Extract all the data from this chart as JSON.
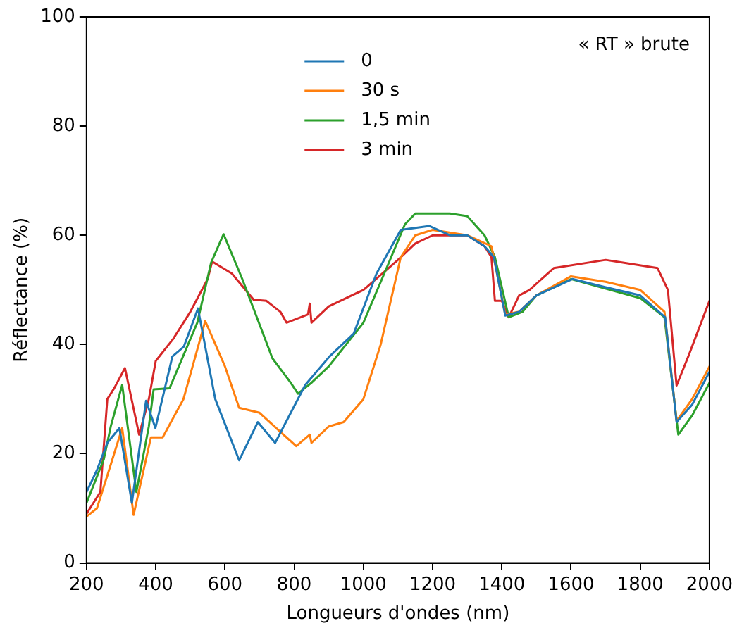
{
  "chart_data": {
    "type": "line",
    "xlabel": "Longueurs d'ondes (nm)",
    "ylabel": "Réflectance (%)",
    "xlim": [
      200,
      2000
    ],
    "xticks": [
      200,
      400,
      600,
      800,
      1000,
      1200,
      1400,
      1600,
      1800,
      2000
    ],
    "ylim": [
      0,
      100
    ],
    "yticks": [
      0,
      20,
      40,
      60,
      80,
      100
    ],
    "grid": false,
    "legend": "top",
    "marker": "none",
    "line_style": "solid",
    "annotations": [
      "« RT » brute"
    ],
    "series": [
      {
        "name": "0",
        "color": "#1f77b4",
        "x": [
          200,
          230,
          260,
          295,
          331,
          372,
          399,
          448,
          481,
          522,
          572,
          641,
          695,
          745,
          832,
          902,
          972,
          1038,
          1108,
          1191,
          1250,
          1300,
          1350,
          1377,
          1410,
          1450,
          1500,
          1604,
          1700,
          1800,
          1872,
          1905,
          1950,
          2000
        ],
        "values": [
          13,
          17,
          22,
          24.7,
          11,
          29.7,
          24.7,
          37.8,
          39.6,
          46.6,
          30,
          18.8,
          25.8,
          22,
          32.6,
          37.8,
          42,
          53,
          61,
          61.7,
          60,
          60,
          58,
          56,
          45.3,
          46,
          49,
          52,
          50.5,
          49,
          45,
          25.8,
          29,
          35
        ]
      },
      {
        "name": "30 s",
        "color": "#ff7f0e",
        "x": [
          200,
          230,
          260,
          303,
          336,
          386,
          420,
          480,
          543,
          600,
          641,
          700,
          760,
          806,
          845,
          850,
          900,
          943,
          1000,
          1050,
          1108,
          1150,
          1200,
          1300,
          1370,
          1410,
          1450,
          1500,
          1600,
          1700,
          1800,
          1870,
          1905,
          1950,
          2000
        ],
        "values": [
          8.5,
          10,
          16,
          24.7,
          8.8,
          23,
          23,
          30,
          44.3,
          36,
          28.4,
          27.5,
          24,
          21.4,
          23.5,
          22,
          25,
          25.8,
          30,
          40,
          56,
          60,
          61,
          60,
          58,
          45.5,
          46,
          49,
          52.5,
          51.5,
          50,
          46,
          26,
          30,
          36
        ]
      },
      {
        "name": "1,5 min",
        "color": "#2ca02c",
        "x": [
          200,
          250,
          270,
          303,
          344,
          380,
          394,
          440,
          480,
          520,
          560,
          596,
          650,
          737,
          790,
          811,
          850,
          900,
          1000,
          1067,
          1120,
          1150,
          1250,
          1300,
          1350,
          1380,
          1420,
          1460,
          1500,
          1600,
          1800,
          1870,
          1910,
          1950,
          2000
        ],
        "values": [
          11,
          19,
          25,
          32.6,
          13,
          25,
          31.8,
          32,
          38,
          44,
          55,
          60.2,
          52,
          37.5,
          33,
          31,
          33,
          36,
          44,
          54,
          62,
          64,
          64,
          63.5,
          60,
          56,
          45,
          46,
          49,
          52,
          48.5,
          45,
          23.5,
          27,
          33
        ]
      },
      {
        "name": "3 min",
        "color": "#d62728",
        "x": [
          200,
          240,
          260,
          280,
          311,
          352,
          380,
          400,
          450,
          500,
          550,
          563,
          620,
          683,
          720,
          760,
          778,
          840,
          845,
          850,
          900,
          1000,
          1100,
          1150,
          1200,
          1300,
          1350,
          1370,
          1380,
          1400,
          1420,
          1450,
          1480,
          1550,
          1700,
          1750,
          1850,
          1880,
          1905,
          1940,
          2000
        ],
        "values": [
          9,
          13,
          30,
          32,
          35.7,
          23.5,
          30,
          37,
          41,
          46,
          52,
          55.2,
          53,
          48.2,
          48,
          46,
          44,
          45.5,
          47.5,
          44,
          47,
          50,
          55.5,
          58.5,
          60,
          60,
          58,
          56,
          48,
          48,
          45,
          49,
          50,
          54,
          55.5,
          55,
          54,
          50,
          32.5,
          38,
          48
        ]
      }
    ]
  }
}
